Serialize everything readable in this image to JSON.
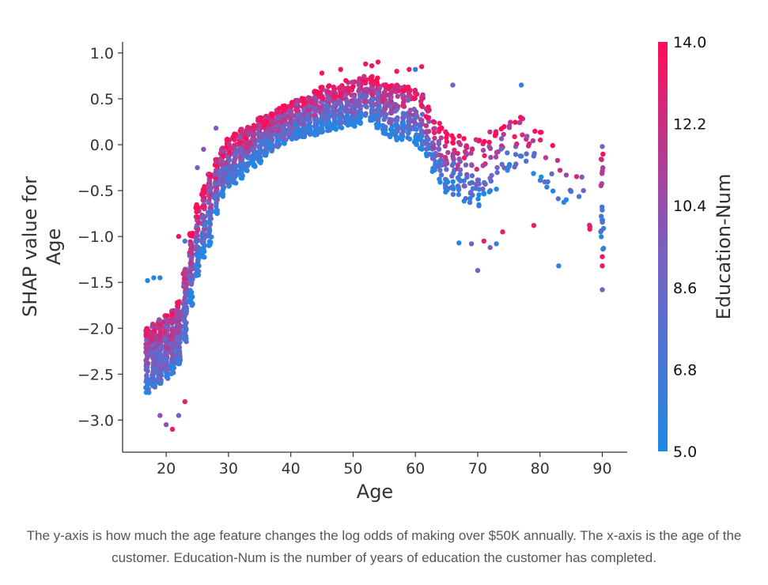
{
  "chart_data": {
    "type": "scatter",
    "title": "",
    "xlabel": "Age",
    "ylabel_lines": [
      "SHAP value for",
      "Age"
    ],
    "xlim": [
      13,
      94
    ],
    "ylim": [
      -3.35,
      1.12
    ],
    "xticks": [
      20,
      30,
      40,
      50,
      60,
      70,
      80,
      90
    ],
    "xtick_labels": [
      "20",
      "30",
      "40",
      "50",
      "60",
      "70",
      "80",
      "90"
    ],
    "yticks": [
      1.0,
      0.5,
      0.0,
      -0.5,
      -1.0,
      -1.5,
      -2.0,
      -2.5,
      -3.0
    ],
    "ytick_labels": [
      "1.0",
      "0.5",
      "0.0",
      "−0.5",
      "−1.0",
      "−1.5",
      "−2.0",
      "−2.5",
      "−3.0"
    ],
    "color_feature": "Education-Num",
    "colorbar": {
      "label": "Education-Num",
      "min": 5.0,
      "max": 14.0,
      "ticks": [
        "14.0",
        "12.2",
        "10.4",
        "8.6",
        "6.8",
        "5.0"
      ],
      "colors": [
        "#1e88e5",
        "#7b5ec0",
        "#ff0d57"
      ]
    },
    "point_color": {
      "blue": "#1e88e5",
      "purple": "#7b5ec0",
      "pink": "#ff0d57"
    },
    "profile": [
      {
        "age": 17,
        "center": -2.35,
        "spread": 0.35,
        "n": 90
      },
      {
        "age": 18,
        "center": -2.3,
        "spread": 0.35,
        "n": 95
      },
      {
        "age": 19,
        "center": -2.25,
        "spread": 0.35,
        "n": 95
      },
      {
        "age": 20,
        "center": -2.2,
        "spread": 0.35,
        "n": 95
      },
      {
        "age": 21,
        "center": -2.15,
        "spread": 0.35,
        "n": 95
      },
      {
        "age": 22,
        "center": -2.05,
        "spread": 0.35,
        "n": 90
      },
      {
        "age": 23,
        "center": -1.75,
        "spread": 0.4,
        "n": 75
      },
      {
        "age": 24,
        "center": -1.35,
        "spread": 0.4,
        "n": 65
      },
      {
        "age": 25,
        "center": -1.05,
        "spread": 0.4,
        "n": 60
      },
      {
        "age": 26,
        "center": -0.85,
        "spread": 0.4,
        "n": 60
      },
      {
        "age": 27,
        "center": -0.7,
        "spread": 0.4,
        "n": 55
      },
      {
        "age": 28,
        "center": -0.45,
        "spread": 0.3,
        "n": 55
      },
      {
        "age": 29,
        "center": -0.3,
        "spread": 0.27,
        "n": 55
      },
      {
        "age": 30,
        "center": -0.2,
        "spread": 0.27,
        "n": 55
      },
      {
        "age": 31,
        "center": -0.15,
        "spread": 0.27,
        "n": 55
      },
      {
        "age": 32,
        "center": -0.1,
        "spread": 0.27,
        "n": 55
      },
      {
        "age": 33,
        "center": -0.05,
        "spread": 0.25,
        "n": 55
      },
      {
        "age": 34,
        "center": 0.0,
        "spread": 0.25,
        "n": 55
      },
      {
        "age": 35,
        "center": 0.05,
        "spread": 0.25,
        "n": 55
      },
      {
        "age": 36,
        "center": 0.1,
        "spread": 0.22,
        "n": 55
      },
      {
        "age": 37,
        "center": 0.15,
        "spread": 0.22,
        "n": 55
      },
      {
        "age": 38,
        "center": 0.18,
        "spread": 0.22,
        "n": 55
      },
      {
        "age": 39,
        "center": 0.22,
        "spread": 0.22,
        "n": 55
      },
      {
        "age": 40,
        "center": 0.25,
        "spread": 0.22,
        "n": 55
      },
      {
        "age": 41,
        "center": 0.28,
        "spread": 0.22,
        "n": 55
      },
      {
        "age": 42,
        "center": 0.3,
        "spread": 0.22,
        "n": 55
      },
      {
        "age": 43,
        "center": 0.32,
        "spread": 0.22,
        "n": 55
      },
      {
        "age": 44,
        "center": 0.35,
        "spread": 0.25,
        "n": 50
      },
      {
        "age": 45,
        "center": 0.38,
        "spread": 0.25,
        "n": 50
      },
      {
        "age": 46,
        "center": 0.4,
        "spread": 0.25,
        "n": 50
      },
      {
        "age": 47,
        "center": 0.4,
        "spread": 0.25,
        "n": 50
      },
      {
        "age": 48,
        "center": 0.42,
        "spread": 0.25,
        "n": 45
      },
      {
        "age": 49,
        "center": 0.45,
        "spread": 0.25,
        "n": 45
      },
      {
        "age": 50,
        "center": 0.45,
        "spread": 0.25,
        "n": 45
      },
      {
        "age": 51,
        "center": 0.48,
        "spread": 0.25,
        "n": 45
      },
      {
        "age": 52,
        "center": 0.5,
        "spread": 0.25,
        "n": 40
      },
      {
        "age": 53,
        "center": 0.5,
        "spread": 0.25,
        "n": 40
      },
      {
        "age": 54,
        "center": 0.45,
        "spread": 0.28,
        "n": 40
      },
      {
        "age": 55,
        "center": 0.4,
        "spread": 0.28,
        "n": 40
      },
      {
        "age": 56,
        "center": 0.35,
        "spread": 0.3,
        "n": 38
      },
      {
        "age": 57,
        "center": 0.35,
        "spread": 0.3,
        "n": 35
      },
      {
        "age": 58,
        "center": 0.35,
        "spread": 0.3,
        "n": 35
      },
      {
        "age": 59,
        "center": 0.35,
        "spread": 0.3,
        "n": 30
      },
      {
        "age": 60,
        "center": 0.3,
        "spread": 0.3,
        "n": 30
      },
      {
        "age": 61,
        "center": 0.25,
        "spread": 0.3,
        "n": 30
      },
      {
        "age": 62,
        "center": 0.15,
        "spread": 0.28,
        "n": 25
      },
      {
        "age": 63,
        "center": 0.0,
        "spread": 0.3,
        "n": 25
      },
      {
        "age": 64,
        "center": -0.1,
        "spread": 0.35,
        "n": 22
      },
      {
        "age": 65,
        "center": -0.2,
        "spread": 0.35,
        "n": 22
      },
      {
        "age": 66,
        "center": -0.2,
        "spread": 0.35,
        "n": 20
      },
      {
        "age": 67,
        "center": -0.25,
        "spread": 0.35,
        "n": 18
      },
      {
        "age": 68,
        "center": -0.3,
        "spread": 0.38,
        "n": 16
      },
      {
        "age": 69,
        "center": -0.3,
        "spread": 0.38,
        "n": 15
      },
      {
        "age": 70,
        "center": -0.3,
        "spread": 0.38,
        "n": 14
      },
      {
        "age": 71,
        "center": -0.25,
        "spread": 0.38,
        "n": 12
      },
      {
        "age": 72,
        "center": -0.2,
        "spread": 0.35,
        "n": 10
      },
      {
        "age": 73,
        "center": -0.15,
        "spread": 0.35,
        "n": 10
      },
      {
        "age": 74,
        "center": -0.1,
        "spread": 0.3,
        "n": 9
      },
      {
        "age": 75,
        "center": -0.05,
        "spread": 0.3,
        "n": 8
      },
      {
        "age": 76,
        "center": -0.05,
        "spread": 0.3,
        "n": 7
      },
      {
        "age": 77,
        "center": 0.0,
        "spread": 0.3,
        "n": 7
      },
      {
        "age": 78,
        "center": -0.05,
        "spread": 0.3,
        "n": 6
      },
      {
        "age": 79,
        "center": -0.1,
        "spread": 0.3,
        "n": 5
      },
      {
        "age": 80,
        "center": -0.15,
        "spread": 0.3,
        "n": 5
      },
      {
        "age": 81,
        "center": -0.2,
        "spread": 0.3,
        "n": 4
      },
      {
        "age": 82,
        "center": -0.3,
        "spread": 0.3,
        "n": 3
      },
      {
        "age": 83,
        "center": -0.4,
        "spread": 0.3,
        "n": 3
      },
      {
        "age": 84,
        "center": -0.4,
        "spread": 0.3,
        "n": 3
      },
      {
        "age": 85,
        "center": -0.45,
        "spread": 0.3,
        "n": 2
      },
      {
        "age": 86,
        "center": -0.4,
        "spread": 0.2,
        "n": 2
      },
      {
        "age": 87,
        "center": -0.4,
        "spread": 0.2,
        "n": 2
      },
      {
        "age": 88,
        "center": -0.9,
        "spread": 0.05,
        "n": 2
      },
      {
        "age": 90,
        "center": -0.6,
        "spread": 0.55,
        "n": 20
      }
    ],
    "outliers": [
      {
        "x": 17,
        "y": -1.48,
        "edu": 0.1
      },
      {
        "x": 18,
        "y": -1.45,
        "edu": 0.05
      },
      {
        "x": 19,
        "y": -1.45,
        "edu": 0.1
      },
      {
        "x": 19,
        "y": -2.95,
        "edu": 0.6
      },
      {
        "x": 20,
        "y": -3.05,
        "edu": 0.55
      },
      {
        "x": 21,
        "y": -3.1,
        "edu": 0.9
      },
      {
        "x": 22,
        "y": -2.95,
        "edu": 0.5
      },
      {
        "x": 23,
        "y": -2.8,
        "edu": 0.9
      },
      {
        "x": 22,
        "y": -1.0,
        "edu": 0.95
      },
      {
        "x": 23,
        "y": -1.05,
        "edu": 0.2
      },
      {
        "x": 25,
        "y": -0.25,
        "edu": 0.5
      },
      {
        "x": 26,
        "y": -0.05,
        "edu": 0.55
      },
      {
        "x": 28,
        "y": 0.18,
        "edu": 0.5
      },
      {
        "x": 45,
        "y": 0.78,
        "edu": 0.95
      },
      {
        "x": 48,
        "y": 0.82,
        "edu": 0.95
      },
      {
        "x": 52,
        "y": 0.88,
        "edu": 0.95
      },
      {
        "x": 53,
        "y": 0.86,
        "edu": 0.95
      },
      {
        "x": 54,
        "y": 0.9,
        "edu": 0.95
      },
      {
        "x": 57,
        "y": 0.8,
        "edu": 0.95
      },
      {
        "x": 59,
        "y": 0.82,
        "edu": 0.9
      },
      {
        "x": 60,
        "y": 0.82,
        "edu": 0.05
      },
      {
        "x": 61,
        "y": 0.85,
        "edu": 0.95
      },
      {
        "x": 66,
        "y": 0.65,
        "edu": 0.5
      },
      {
        "x": 67,
        "y": -1.07,
        "edu": 0.1
      },
      {
        "x": 69,
        "y": -1.08,
        "edu": 0.5
      },
      {
        "x": 70,
        "y": -1.37,
        "edu": 0.5
      },
      {
        "x": 71,
        "y": -1.05,
        "edu": 0.9
      },
      {
        "x": 72,
        "y": -1.12,
        "edu": 0.5
      },
      {
        "x": 73,
        "y": -1.08,
        "edu": 0.1
      },
      {
        "x": 74,
        "y": -0.95,
        "edu": 0.9
      },
      {
        "x": 77,
        "y": 0.65,
        "edu": 0.1
      },
      {
        "x": 79,
        "y": -0.88,
        "edu": 0.9
      },
      {
        "x": 83,
        "y": -1.32,
        "edu": 0.1
      },
      {
        "x": 88,
        "y": -0.92,
        "edu": 0.95
      },
      {
        "x": 90,
        "y": -0.02,
        "edu": 0.5
      },
      {
        "x": 90,
        "y": -1.22,
        "edu": 0.95
      },
      {
        "x": 90,
        "y": -1.32,
        "edu": 0.9
      },
      {
        "x": 90,
        "y": -1.58,
        "edu": 0.5
      }
    ],
    "seed": 7
  },
  "caption": "The y-axis is how much the age feature changes the log odds of making over $50K annually. The x-axis is the age of the customer. Education-Num is the number of years of education the customer has completed."
}
